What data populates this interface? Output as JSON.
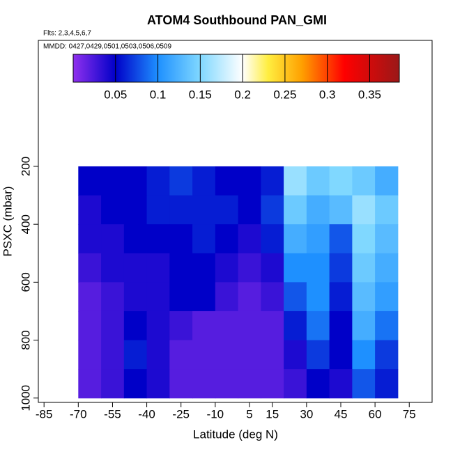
{
  "chart_data": {
    "type": "heatmap",
    "title": "ATOM4 Southbound PAN_GMI",
    "subtitle": "Flts: 2,3,4,5,6,7",
    "annotation": "MMDD: 0427,0429,0501,0503,0506,0509",
    "x_label": "Latitude (deg N)",
    "y_label": "PSXC (mbar)",
    "x": [
      -70,
      -60,
      -50,
      -40,
      -30,
      -20,
      -10,
      0,
      10,
      20,
      30,
      40,
      50,
      60,
      70
    ],
    "y": [
      200,
      300,
      400,
      500,
      600,
      700,
      800,
      900,
      1000
    ],
    "z": [
      [
        0.05,
        0.05,
        0.05,
        0.06,
        0.07,
        0.06,
        0.05,
        0.05,
        0.06,
        0.16,
        0.14,
        0.15,
        0.14,
        0.12
      ],
      [
        0.04,
        0.05,
        0.05,
        0.06,
        0.06,
        0.06,
        0.06,
        0.05,
        0.07,
        0.14,
        0.12,
        0.13,
        0.16,
        0.14
      ],
      [
        0.04,
        0.04,
        0.05,
        0.05,
        0.05,
        0.06,
        0.05,
        0.04,
        0.06,
        0.12,
        0.11,
        0.08,
        0.15,
        0.13
      ],
      [
        0.03,
        0.04,
        0.04,
        0.04,
        0.05,
        0.05,
        0.04,
        0.03,
        0.04,
        0.1,
        0.1,
        0.07,
        0.14,
        0.12
      ],
      [
        0.02,
        0.03,
        0.04,
        0.04,
        0.05,
        0.05,
        0.03,
        0.02,
        0.03,
        0.08,
        0.1,
        0.06,
        0.13,
        0.11
      ],
      [
        0.02,
        0.03,
        0.05,
        0.04,
        0.03,
        0.02,
        0.02,
        0.02,
        0.02,
        0.06,
        0.09,
        0.05,
        0.12,
        0.09
      ],
      [
        0.02,
        0.03,
        0.06,
        0.04,
        0.02,
        0.02,
        0.02,
        0.02,
        0.02,
        0.04,
        0.07,
        0.05,
        0.1,
        0.07
      ],
      [
        0.02,
        0.03,
        0.05,
        0.04,
        0.02,
        0.02,
        0.02,
        0.02,
        0.02,
        0.03,
        0.05,
        0.04,
        0.08,
        0.06
      ]
    ],
    "xlim": [
      -87.5,
      85
    ],
    "ylim": [
      1015,
      -235
    ],
    "xticks": [
      -85,
      -70,
      -55,
      -40,
      -25,
      -10,
      5,
      15,
      30,
      45,
      60,
      75
    ],
    "yticks": [
      200,
      400,
      600,
      800,
      1000
    ],
    "clim": [
      0,
      0.385
    ],
    "cticks": [
      0.05,
      0.1,
      0.15,
      0.2,
      0.25,
      0.3,
      0.35
    ],
    "colormap": [
      {
        "value": 0,
        "color": "#9030ee"
      },
      {
        "value": 0.05,
        "color": "#0000c8"
      },
      {
        "value": 0.1,
        "color": "#1e90ff"
      },
      {
        "value": 0.15,
        "color": "#80d8ff"
      },
      {
        "value": 0.2,
        "color": "#ffffff"
      },
      {
        "value": 0.23,
        "color": "#ffee40"
      },
      {
        "value": 0.27,
        "color": "#ffa000"
      },
      {
        "value": 0.32,
        "color": "#ff0000"
      },
      {
        "value": 0.385,
        "color": "#9a1818"
      }
    ]
  }
}
